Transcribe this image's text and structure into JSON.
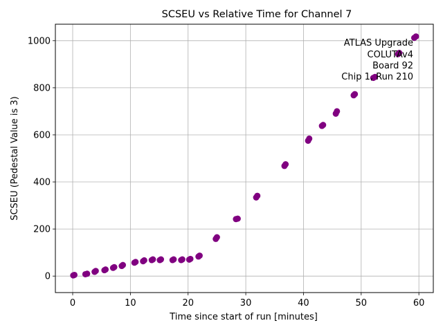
{
  "chart_data": {
    "type": "scatter",
    "title": "SCSEU vs Relative Time for Channel 7",
    "xlabel": "Time since start of run [minutes]",
    "ylabel": "SCSEU (Pedestal Value is 3)",
    "xlim": [
      -3,
      62.5
    ],
    "ylim": [
      -70,
      1070
    ],
    "x_ticks": [
      0,
      10,
      20,
      30,
      40,
      50,
      60
    ],
    "y_ticks": [
      0,
      200,
      400,
      600,
      800,
      1000
    ],
    "grid": true,
    "marker_color": "#800080",
    "annotation": {
      "lines": [
        "ATLAS Upgrade",
        "COLUTAv4",
        "Board 92",
        "Chip 1, Run 210"
      ],
      "placement": "top-right"
    },
    "x": [
      0.1,
      0.3,
      2.2,
      2.5,
      3.8,
      4.0,
      5.5,
      5.7,
      7.0,
      7.2,
      8.5,
      8.7,
      10.7,
      10.9,
      12.2,
      12.4,
      13.7,
      13.9,
      15.1,
      15.3,
      17.3,
      17.5,
      18.8,
      19.0,
      20.2,
      20.4,
      21.8,
      22.0,
      24.8,
      25.0,
      28.3,
      28.6,
      31.8,
      32.0,
      36.7,
      36.9,
      40.8,
      41.0,
      43.2,
      43.4,
      45.6,
      45.8,
      48.7,
      48.9,
      52.1,
      52.4,
      56.4,
      56.6,
      59.2,
      59.5
    ],
    "y": [
      3,
      5,
      8,
      10,
      18,
      22,
      25,
      28,
      35,
      38,
      43,
      47,
      57,
      60,
      63,
      67,
      68,
      71,
      68,
      71,
      68,
      71,
      68,
      71,
      70,
      73,
      83,
      87,
      158,
      165,
      242,
      244,
      334,
      341,
      468,
      475,
      575,
      584,
      638,
      642,
      690,
      700,
      768,
      773,
      842,
      846,
      943,
      948,
      1012,
      1018
    ]
  }
}
